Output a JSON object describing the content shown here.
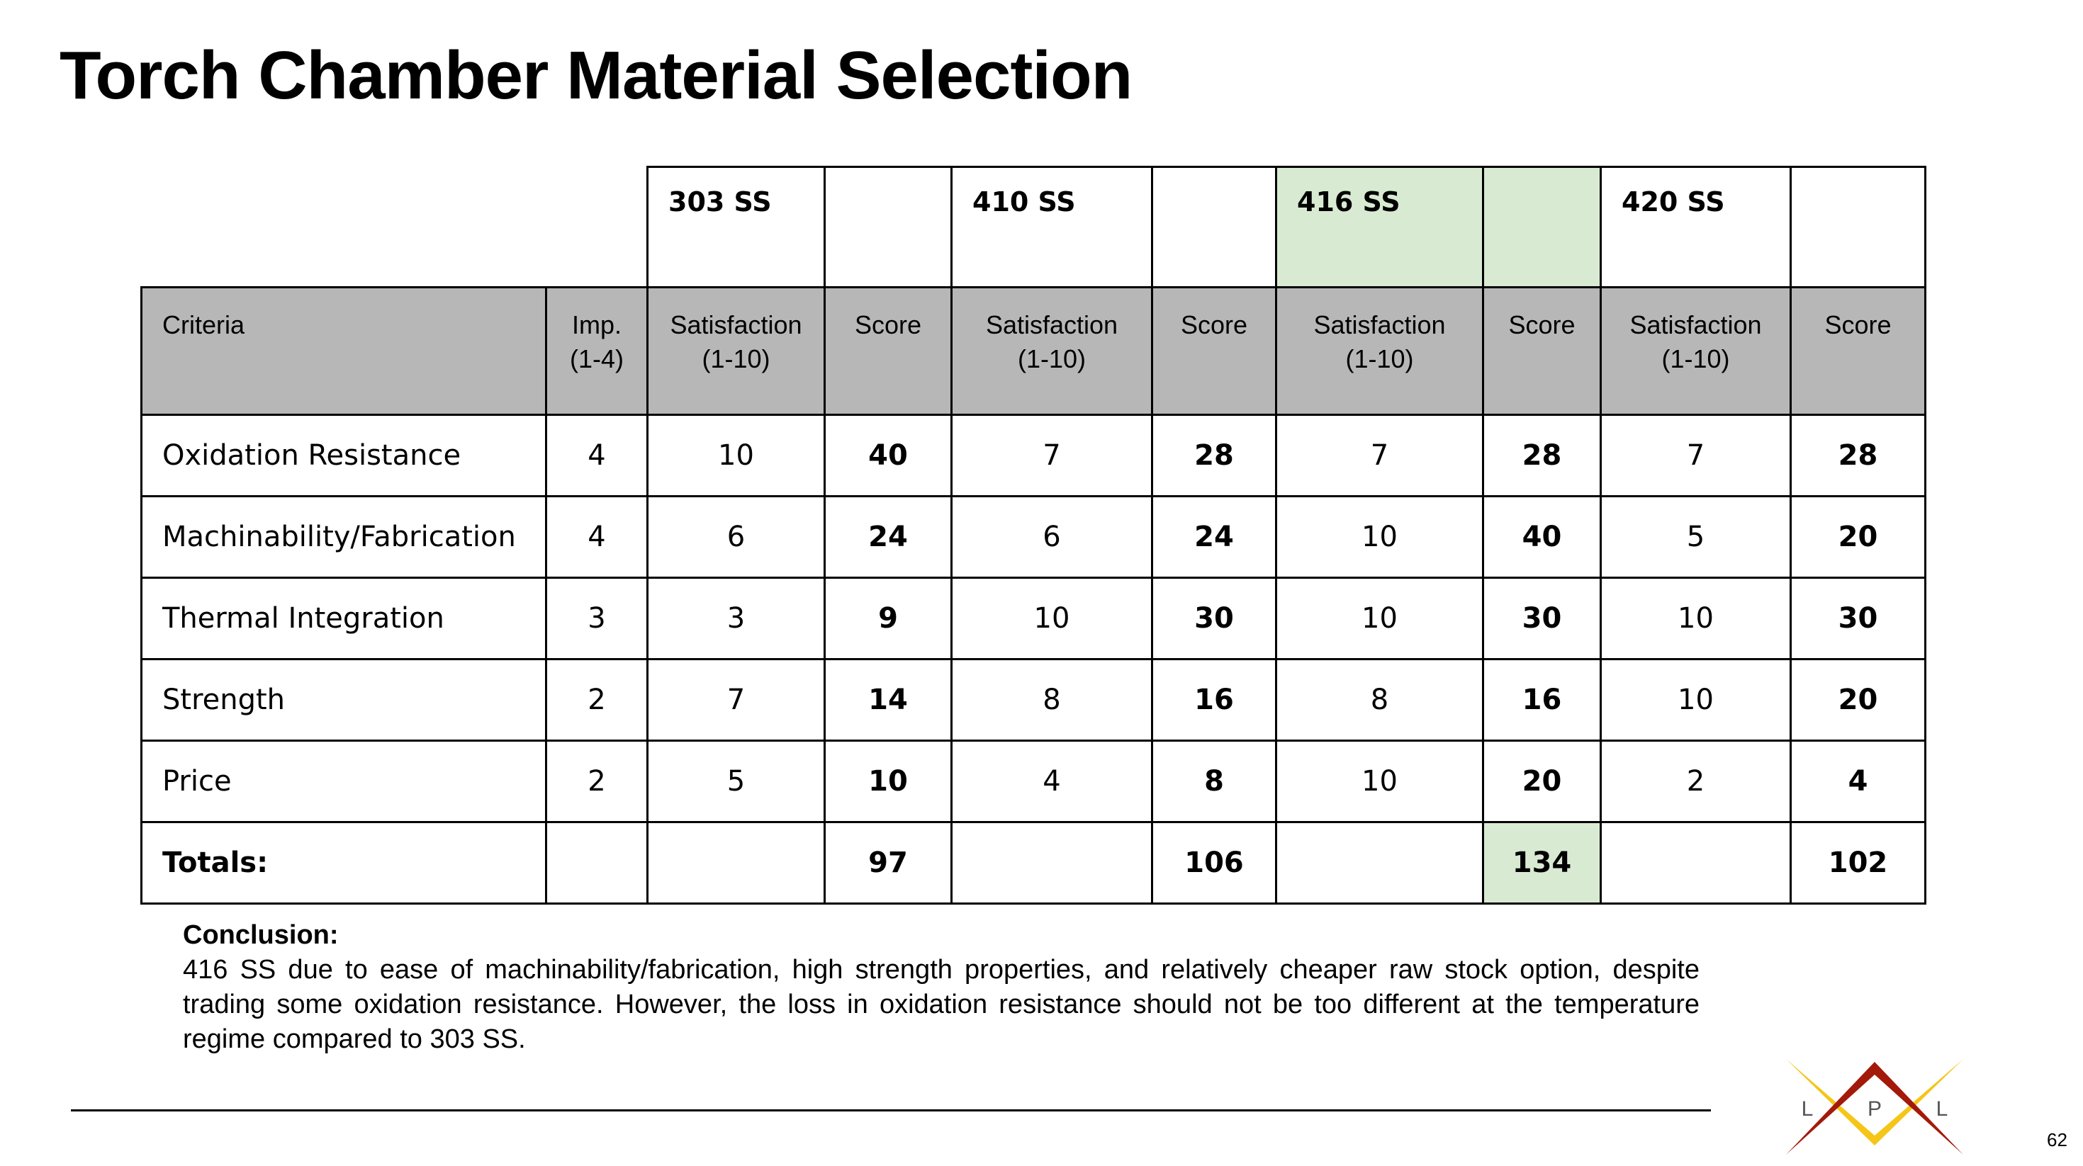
{
  "title": "Torch Chamber Material Selection",
  "materials": [
    "303 SS",
    "410 SS",
    "416 SS",
    "420 SS"
  ],
  "selected_material": "416 SS",
  "colors": {
    "header_gray": "#b7b7b7",
    "highlight_green": "#d9ead3",
    "logo_red": "#a31a0a",
    "logo_yellow": "#f5c518"
  },
  "headers": {
    "criteria": "Criteria",
    "imp": [
      "Imp.",
      "(1-4)"
    ],
    "satisfaction": [
      "Satisfaction",
      "(1-10)"
    ],
    "score": "Score"
  },
  "rows": [
    {
      "criteria": "Oxidation Resistance",
      "imp": "4",
      "values": [
        [
          "10",
          "40"
        ],
        [
          "7",
          "28"
        ],
        [
          "7",
          "28"
        ],
        [
          "7",
          "28"
        ]
      ]
    },
    {
      "criteria": "Machinability/Fabrication",
      "imp": "4",
      "values": [
        [
          "6",
          "24"
        ],
        [
          "6",
          "24"
        ],
        [
          "10",
          "40"
        ],
        [
          "5",
          "20"
        ]
      ]
    },
    {
      "criteria": "Thermal Integration",
      "imp": "3",
      "values": [
        [
          "3",
          "9"
        ],
        [
          "10",
          "30"
        ],
        [
          "10",
          "30"
        ],
        [
          "10",
          "30"
        ]
      ]
    },
    {
      "criteria": "Strength",
      "imp": "2",
      "values": [
        [
          "7",
          "14"
        ],
        [
          "8",
          "16"
        ],
        [
          "8",
          "16"
        ],
        [
          "10",
          "20"
        ]
      ]
    },
    {
      "criteria": "Price",
      "imp": "2",
      "values": [
        [
          "5",
          "10"
        ],
        [
          "4",
          "8"
        ],
        [
          "10",
          "20"
        ],
        [
          "2",
          "4"
        ]
      ]
    }
  ],
  "totals": {
    "label": "Totals:",
    "values": [
      "97",
      "106",
      "134",
      "102"
    ]
  },
  "conclusion": {
    "label": "Conclusion:",
    "text": "416 SS due to ease of machinability/fabrication, high strength properties, and relatively cheaper raw stock option, despite trading some oxidation resistance. However, the loss in oxidation resistance should not be too different at the temperature regime compared to 303 SS."
  },
  "logo": {
    "letters": [
      "L",
      "P",
      "L"
    ]
  },
  "page_number": "62"
}
